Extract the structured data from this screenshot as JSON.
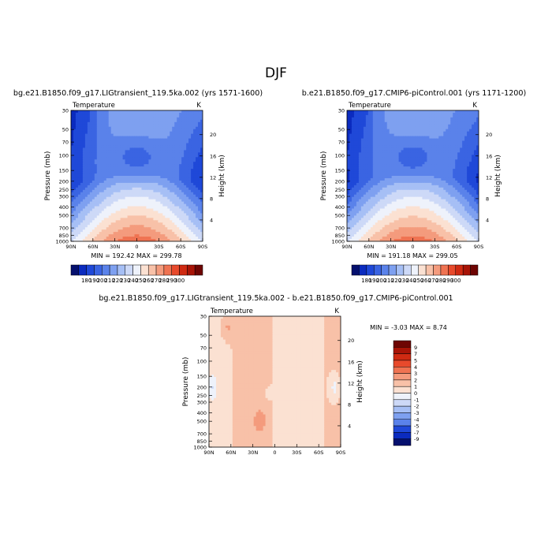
{
  "figure": {
    "season": "DJF"
  },
  "chart_data": [
    {
      "type": "heatmap",
      "title": "bg.e21.B1850.f09_g17.LIGtransient_119.5ka.002 (yrs 1571-1600)",
      "variable": "Temperature",
      "units": "K",
      "ylabel": "Pressure (mb)",
      "y2label": "Height (km)",
      "x_ticks": [
        "90N",
        "60N",
        "30N",
        "0",
        "30S",
        "60S",
        "90S"
      ],
      "y_ticks": [
        30,
        50,
        70,
        100,
        150,
        200,
        250,
        300,
        400,
        500,
        700,
        850,
        1000
      ],
      "y2_ticks": [
        20,
        16,
        12,
        8,
        4
      ],
      "ylim": [
        1000,
        30
      ],
      "min_text": "MIN = 192.42",
      "max_text": "MAX = 299.78",
      "min": 192.42,
      "max": 299.78,
      "colorbar": {
        "labels": [
          "180",
          "190",
          "200",
          "210",
          "220",
          "230",
          "240",
          "250",
          "260",
          "270",
          "280",
          "290",
          "300"
        ],
        "colors": [
          "#05106e",
          "#0b2bbf",
          "#1f48d8",
          "#3a64e2",
          "#5a82ea",
          "#7ea0f0",
          "#a6bff5",
          "#cdd9f7",
          "#eef2fb",
          "#fbe1d2",
          "#f8c1a8",
          "#f49b7d",
          "#ef7352",
          "#e84a2c",
          "#cf2a12",
          "#a81407",
          "#6e0503"
        ]
      }
    },
    {
      "type": "heatmap",
      "title": "b.e21.B1850.f09_g17.CMIP6-piControl.001 (yrs 1171-1200)",
      "variable": "Temperature",
      "units": "K",
      "ylabel": "Pressure (mb)",
      "y2label": "Height (km)",
      "x_ticks": [
        "90N",
        "60N",
        "30N",
        "0",
        "30S",
        "60S",
        "90S"
      ],
      "y_ticks": [
        30,
        50,
        70,
        100,
        150,
        200,
        250,
        300,
        400,
        500,
        700,
        850,
        1000
      ],
      "y2_ticks": [
        20,
        16,
        12,
        8,
        4
      ],
      "ylim": [
        1000,
        30
      ],
      "min_text": "MIN = 191.18",
      "max_text": "MAX = 299.05",
      "min": 191.18,
      "max": 299.05,
      "colorbar": {
        "labels": [
          "180",
          "190",
          "200",
          "210",
          "220",
          "230",
          "240",
          "250",
          "260",
          "270",
          "280",
          "290",
          "300"
        ],
        "colors": [
          "#05106e",
          "#0b2bbf",
          "#1f48d8",
          "#3a64e2",
          "#5a82ea",
          "#7ea0f0",
          "#a6bff5",
          "#cdd9f7",
          "#eef2fb",
          "#fbe1d2",
          "#f8c1a8",
          "#f49b7d",
          "#ef7352",
          "#e84a2c",
          "#cf2a12",
          "#a81407",
          "#6e0503"
        ]
      }
    },
    {
      "type": "heatmap",
      "title": "bg.e21.B1850.f09_g17.LIGtransient_119.5ka.002 - b.e21.B1850.f09_g17.CMIP6-piControl.001",
      "variable": "Temperature",
      "units": "K",
      "ylabel": "Pressure (mb)",
      "y2label": "Height (km)",
      "x_ticks": [
        "90N",
        "60N",
        "30N",
        "0",
        "30S",
        "60S",
        "90S"
      ],
      "y_ticks": [
        30,
        50,
        70,
        100,
        150,
        200,
        250,
        300,
        400,
        500,
        700,
        850,
        1000
      ],
      "y2_ticks": [
        20,
        16,
        12,
        8,
        4
      ],
      "ylim": [
        1000,
        30
      ],
      "min_text": "MIN = -3.03",
      "max_text": "MAX = 8.74",
      "min": -3.03,
      "max": 8.74,
      "colorbar": {
        "labels": [
          "9",
          "7",
          "5",
          "4",
          "3",
          "2",
          "1",
          "0",
          "-1",
          "-2",
          "-3",
          "-4",
          "-5",
          "-7",
          "-9"
        ],
        "colors": [
          "#6e0503",
          "#a81407",
          "#cf2a12",
          "#e84a2c",
          "#ef7352",
          "#f49b7d",
          "#f8c1a8",
          "#fbe1d2",
          "#eef2fb",
          "#cdd9f7",
          "#a6bff5",
          "#7ea0f0",
          "#5a82ea",
          "#1f48d8",
          "#0b2bbf",
          "#05106e"
        ]
      }
    }
  ]
}
